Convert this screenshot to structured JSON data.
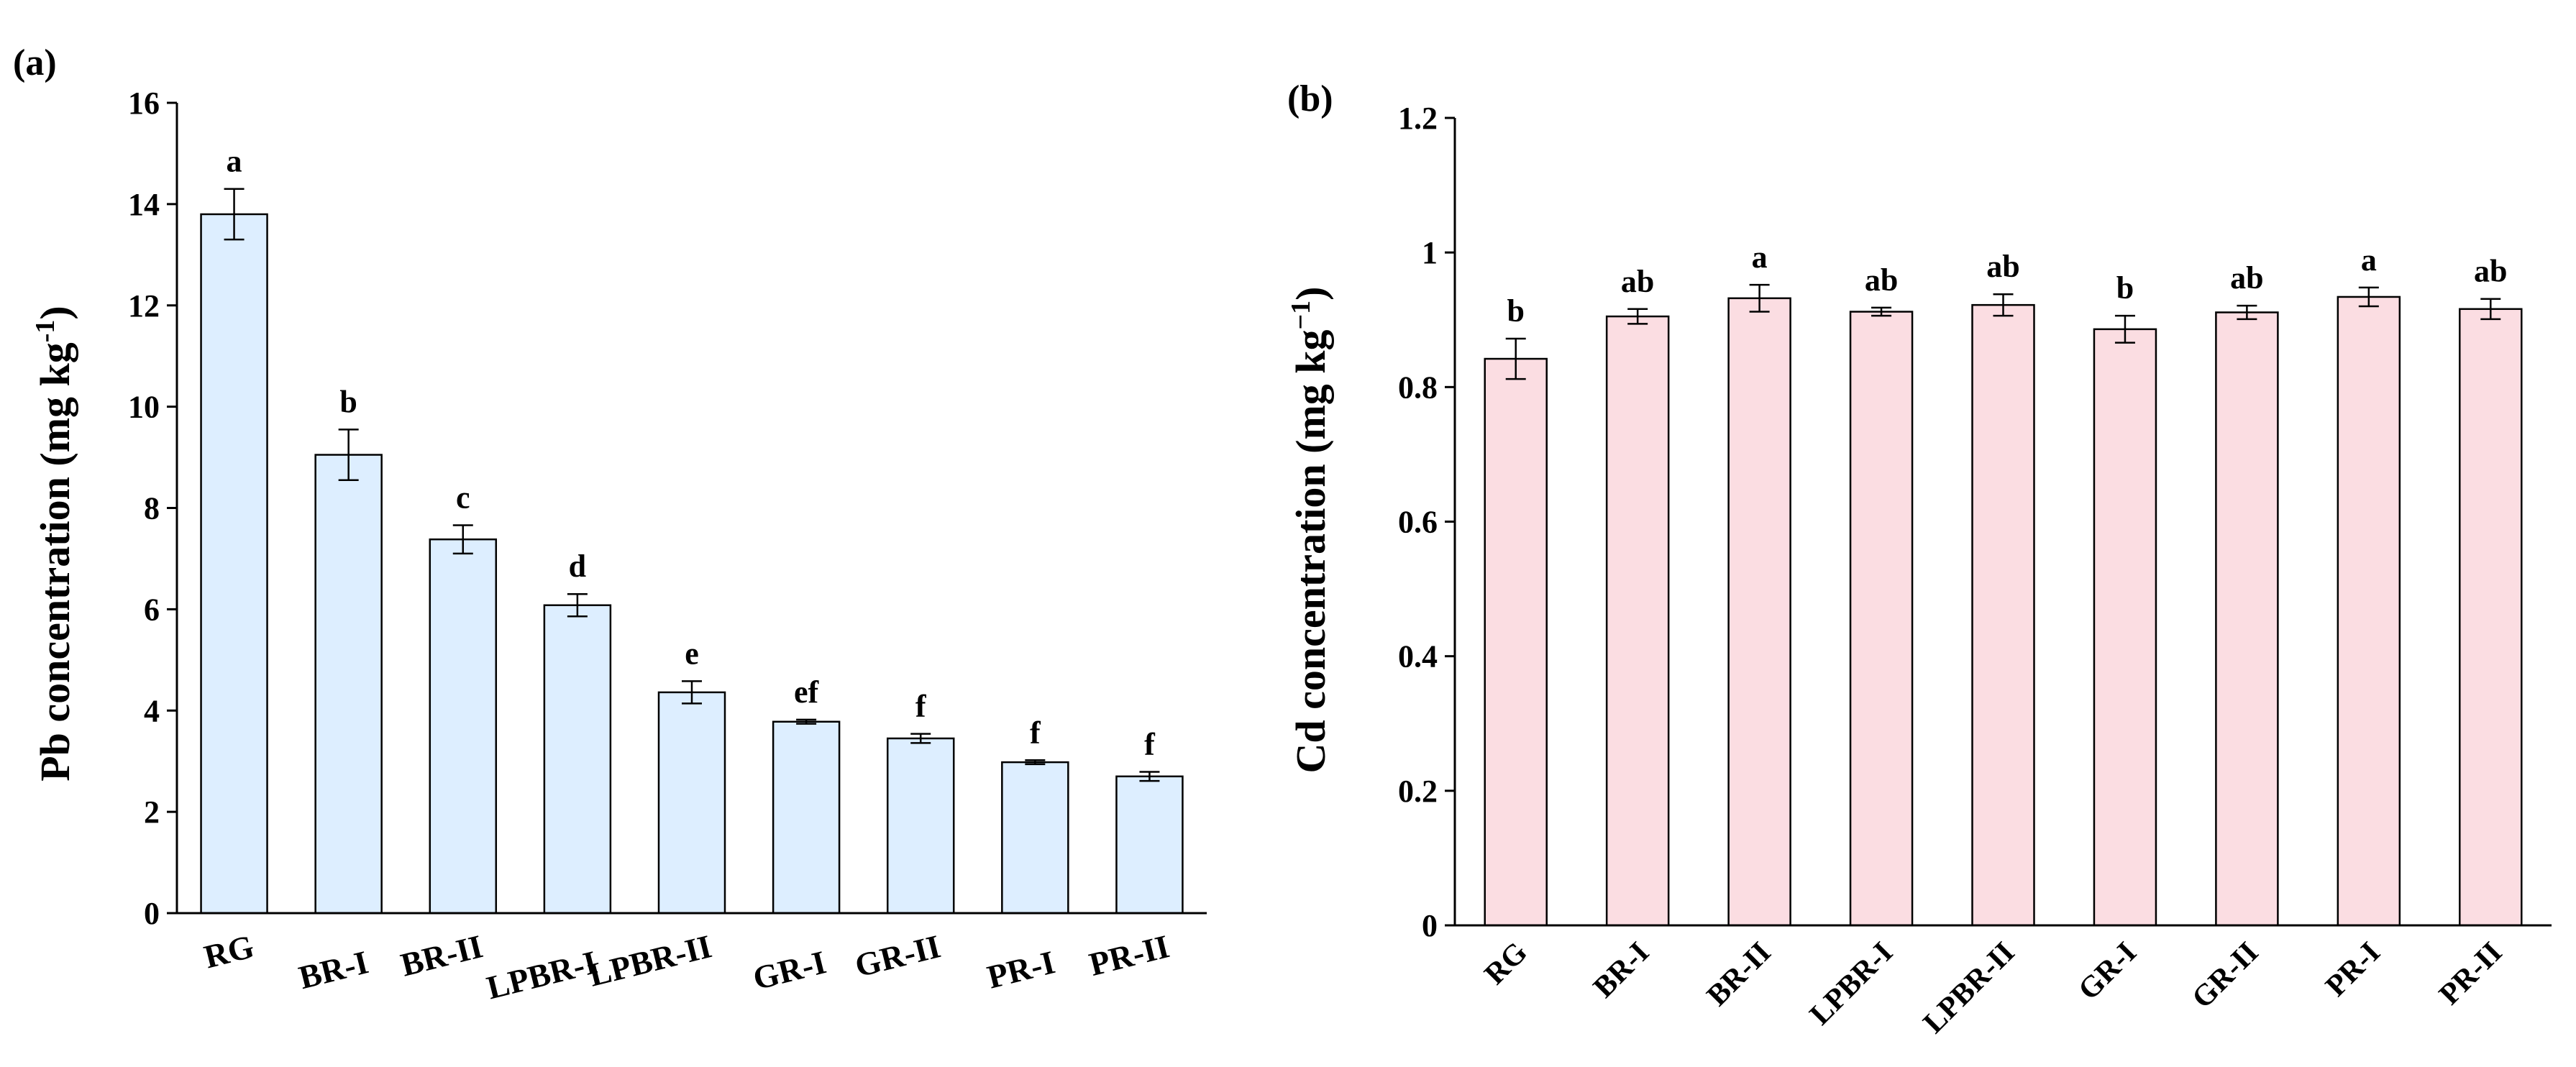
{
  "chart_data": [
    {
      "panel_label": "(a)",
      "type": "bar",
      "ylabel_main": "Pb concentration (mg kg",
      "ylabel_sup": "-1",
      "ylabel_close": ")",
      "ylim": [
        0,
        16
      ],
      "yticks": [
        "0",
        "2",
        "4",
        "6",
        "8",
        "10",
        "12",
        "14",
        "16"
      ],
      "categories": [
        "RG",
        "BR-I",
        "BR-II",
        "LPBR-I",
        "LPBR-II",
        "GR-I",
        "GR-II",
        "PR-I",
        "PR-II"
      ],
      "values": [
        13.8,
        9.05,
        7.38,
        6.08,
        4.36,
        3.78,
        3.45,
        2.98,
        2.7
      ],
      "errors": [
        0.5,
        0.5,
        0.28,
        0.22,
        0.22,
        0.04,
        0.09,
        0.04,
        0.09
      ],
      "letters": [
        "a",
        "b",
        "c",
        "d",
        "e",
        "ef",
        "f",
        "f",
        "f"
      ],
      "bar_color": "#ddeeff"
    },
    {
      "panel_label": "(b)",
      "type": "bar",
      "ylabel_main": "Cd concentration (mg kg",
      "ylabel_sup": "−1",
      "ylabel_close": ")",
      "ylim": [
        0,
        1.2
      ],
      "yticks": [
        "0",
        "0.2",
        "0.4",
        "0.6",
        "0.8",
        "1",
        "1.2"
      ],
      "categories": [
        "RG",
        "BR-I",
        "BR-II",
        "LPBR-I",
        "LPBR-II",
        "GR-I",
        "GR-II",
        "PR-I",
        "PR-II"
      ],
      "values": [
        0.842,
        0.905,
        0.932,
        0.912,
        0.922,
        0.886,
        0.911,
        0.934,
        0.916
      ],
      "errors": [
        0.03,
        0.011,
        0.02,
        0.006,
        0.016,
        0.02,
        0.01,
        0.014,
        0.015
      ],
      "letters": [
        "b",
        "ab",
        "a",
        "ab",
        "ab",
        "b",
        "ab",
        "a",
        "ab"
      ],
      "bar_color": "#fbdde2"
    }
  ]
}
